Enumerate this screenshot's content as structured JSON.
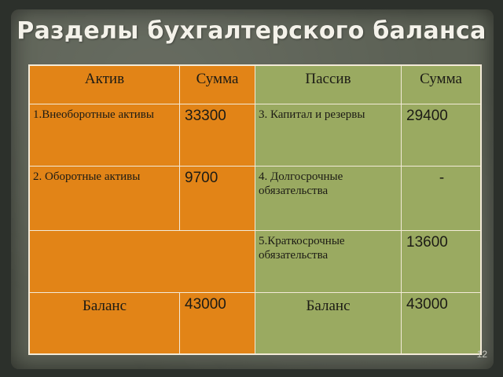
{
  "title": "Разделы бухгалтерского баланса",
  "headers": {
    "asset": "Актив",
    "asset_sum": "Сумма",
    "liability": "Пассив",
    "liability_sum": "Сумма"
  },
  "rows": {
    "r1": {
      "asset": "1.Внеоборотные активы",
      "asset_sum": "33300",
      "liability": "3. Капитал и резервы",
      "liability_sum": "29400"
    },
    "r2": {
      "asset": "2. Оборотные активы",
      "asset_sum": "9700",
      "liability": "4. Долгосрочные обязательства",
      "liability_sum": "-"
    },
    "r3": {
      "liability": "5.Краткосрочные обязательства",
      "liability_sum": "13600"
    },
    "total": {
      "asset": "Баланс",
      "asset_sum": "43000",
      "liability": "Баланс",
      "liability_sum": "43000"
    }
  },
  "slide_number": "12",
  "colors": {
    "asset_side": "#e28417",
    "liability_side": "#9aaa61",
    "board": "#5c6155"
  }
}
